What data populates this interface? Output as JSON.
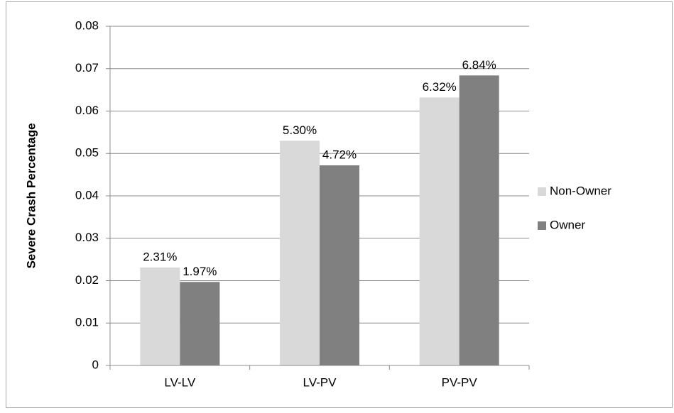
{
  "chart_data": {
    "type": "bar",
    "categories": [
      "LV-LV",
      "LV-PV",
      "PV-PV"
    ],
    "series": [
      {
        "name": "Non-Owner",
        "color": "#d9d9d9",
        "values": [
          0.0231,
          0.053,
          0.0632
        ],
        "value_labels": [
          "2.31%",
          "5.30%",
          "6.32%"
        ]
      },
      {
        "name": "Owner",
        "color": "#808080",
        "values": [
          0.0197,
          0.0472,
          0.0684
        ],
        "value_labels": [
          "1.97%",
          "4.72%",
          "6.84%"
        ]
      }
    ],
    "y_label": "Severe Crash Percentage",
    "ylim": [
      0,
      0.08
    ],
    "yticks": [
      0,
      0.01,
      0.02,
      0.03,
      0.04,
      0.05,
      0.06,
      0.07,
      0.08
    ],
    "grid": true,
    "legend": "right"
  }
}
